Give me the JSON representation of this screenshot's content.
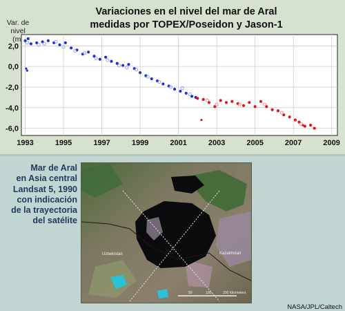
{
  "chart_data": {
    "type": "scatter",
    "title": [
      "Variaciones en el nivel del mar de Aral",
      "medidas por TOPEX/Poseidon y Jason-1"
    ],
    "ylabel": [
      "Var. de",
      "nivel",
      "(m)"
    ],
    "xlim": [
      1992.8,
      2009.3
    ],
    "ylim": [
      -6.7,
      3.1
    ],
    "x_ticks": [
      1993,
      1995,
      1997,
      1999,
      2001,
      2003,
      2005,
      2007,
      2009
    ],
    "y_ticks": [
      2.0,
      0.0,
      -2.0,
      -4.0,
      -6.0
    ],
    "y_tick_labels": [
      "2,0",
      "0,0",
      "-2,0",
      "-4,0",
      "-6,0"
    ],
    "grid": true,
    "series": [
      {
        "color": "#1f2fd6",
        "open_color": "#8f93f0",
        "x": [
          1993.0,
          1993.15,
          1993.3,
          1993.6,
          1993.9,
          1994.2,
          1994.5,
          1994.8,
          1995.1,
          1995.4,
          1995.7,
          1996.0,
          1996.3,
          1996.6,
          1996.9,
          1997.2,
          1997.5,
          1997.8,
          1998.1,
          1998.4,
          1998.7,
          1999.0,
          1999.3,
          1999.6,
          1999.9,
          2000.2,
          2000.5,
          2000.8,
          2001.1,
          2001.4,
          2001.7,
          2001.9
        ],
        "y": [
          2.5,
          2.7,
          2.2,
          2.3,
          2.4,
          2.5,
          2.3,
          2.1,
          2.3,
          1.8,
          1.6,
          1.2,
          1.4,
          1.0,
          0.7,
          0.9,
          0.5,
          0.3,
          0.1,
          0.2,
          -0.2,
          -0.6,
          -0.9,
          -1.2,
          -1.4,
          -1.7,
          -1.9,
          -2.2,
          -2.4,
          -2.6,
          -2.9,
          -3.0
        ],
        "open_x": [
          1993.1,
          1993.7,
          1994.0,
          1994.6,
          1995.0,
          1995.6,
          1996.1,
          1996.7,
          1997.3,
          1997.9,
          1998.3,
          1998.8,
          1999.4,
          2000.0,
          2000.6,
          2001.2,
          2001.6
        ],
        "open_y": [
          2.3,
          2.1,
          2.2,
          2.4,
          1.9,
          1.5,
          1.3,
          0.8,
          0.6,
          0.1,
          -0.1,
          -0.3,
          -1.0,
          -1.5,
          -2.0,
          -2.1,
          -2.7
        ],
        "outliers_x": [
          1993.05,
          1993.1
        ],
        "outliers_y": [
          -0.2,
          -0.4
        ]
      },
      {
        "color": "#e01414",
        "open_color": "#f08080",
        "x": [
          2002.0,
          2002.3,
          2002.6,
          2002.9,
          2003.2,
          2003.5,
          2003.8,
          2004.1,
          2004.4,
          2004.7,
          2005.0,
          2005.3,
          2005.6,
          2005.9,
          2006.2,
          2006.5,
          2006.8,
          2007.1,
          2007.3,
          2007.6,
          2007.9,
          2008.1
        ],
        "y": [
          -3.1,
          -3.2,
          -3.5,
          -3.9,
          -3.3,
          -3.5,
          -3.4,
          -3.6,
          -3.8,
          -3.5,
          -3.9,
          -3.4,
          -3.9,
          -4.2,
          -4.3,
          -4.7,
          -4.9,
          -5.2,
          -5.4,
          -5.8,
          -5.7,
          -6.0
        ],
        "open_x": [
          2002.5,
          2003.0,
          2004.2,
          2005.5,
          2006.4,
          2007.4
        ],
        "open_y": [
          -3.3,
          -3.7,
          -3.7,
          -3.7,
          -4.5,
          -5.6
        ],
        "outliers_x": [
          2002.2,
          2007.5
        ],
        "outliers_y": [
          -5.2,
          -5.7
        ]
      }
    ]
  },
  "caption": {
    "lines": [
      "Mar de Aral",
      "en Asia central",
      "Landsat 5, 1990",
      "con indicación",
      "de la trayectoria",
      "del satélite"
    ]
  },
  "map": {
    "labels": [
      "Uzbekistan",
      "Kazakhstan"
    ],
    "scale_labels": [
      "50",
      "100",
      "200 Kilometers"
    ]
  },
  "credit": "NASA/JPL/Caltech"
}
